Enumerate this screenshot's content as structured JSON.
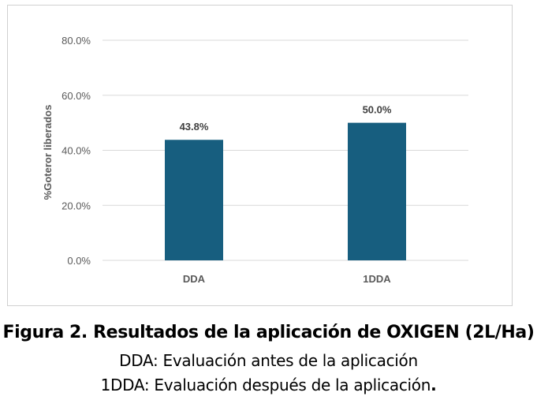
{
  "chart_data": {
    "type": "bar",
    "title": "",
    "xlabel": "",
    "ylabel": "%Goteror liberados",
    "categories": [
      "DDA",
      "1DDA"
    ],
    "values": [
      43.8,
      50.0
    ],
    "value_labels": [
      "43.8%",
      "50.0%"
    ],
    "ylim": [
      0,
      80
    ],
    "yticks": [
      0,
      20,
      40,
      60,
      80
    ],
    "ytick_labels": [
      "0.0%",
      "20.0%",
      "40.0%",
      "60.0%",
      "80.0%"
    ],
    "grid": true,
    "legend": "none",
    "bar_color": "#175e7f"
  },
  "caption": {
    "title": "Figura 2.  Resultados de la aplicación de OXIGEN (2L/Ha)",
    "line1": "DDA: Evaluación antes de la aplicación",
    "line2": "1DDA: Evaluación después de la aplicación",
    "line2_end": "."
  }
}
